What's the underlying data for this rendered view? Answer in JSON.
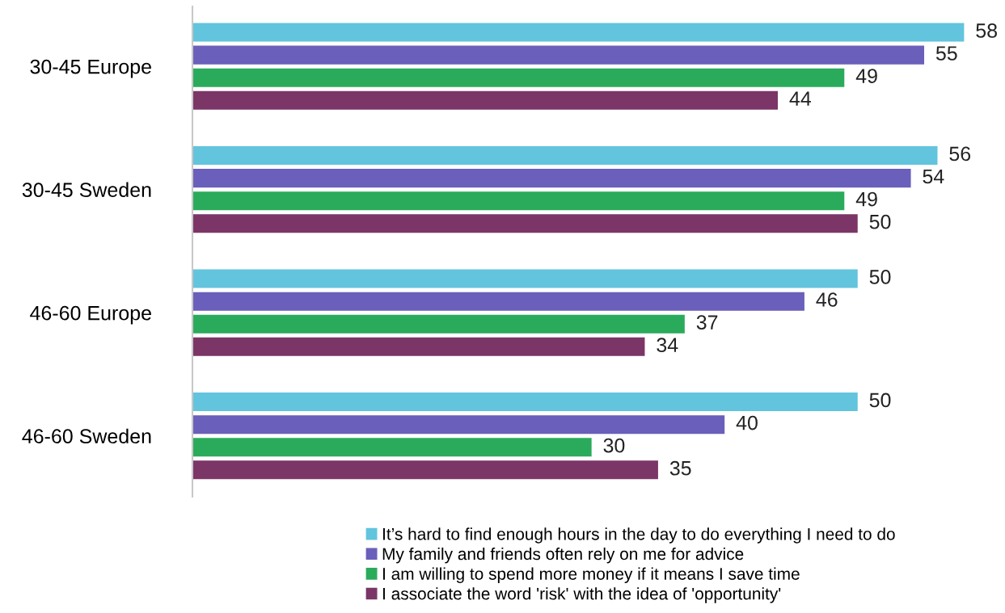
{
  "chart_data": {
    "type": "bar",
    "orientation": "horizontal",
    "data_labels": true,
    "legend": "bottom",
    "grid": false,
    "categories": [
      "30-45 Europe",
      "30-45 Sweden",
      "46-60 Europe",
      "46-60 Sweden"
    ],
    "series": [
      {
        "name": "It’s hard to find enough hours in the day to do everything I need to do",
        "color": "#62c4dd",
        "values": [
          58,
          56,
          50,
          50
        ]
      },
      {
        "name": "My family and friends often rely on me for advice",
        "color": "#6a5fba",
        "values": [
          55,
          54,
          46,
          40
        ]
      },
      {
        "name": "I am willing to spend more money if it means I save time",
        "color": "#2aab5b",
        "values": [
          49,
          49,
          37,
          30
        ]
      },
      {
        "name": "I associate the word 'risk' with the idea of 'opportunity'",
        "color": "#7b3566",
        "values": [
          44,
          50,
          34,
          35
        ]
      }
    ]
  }
}
